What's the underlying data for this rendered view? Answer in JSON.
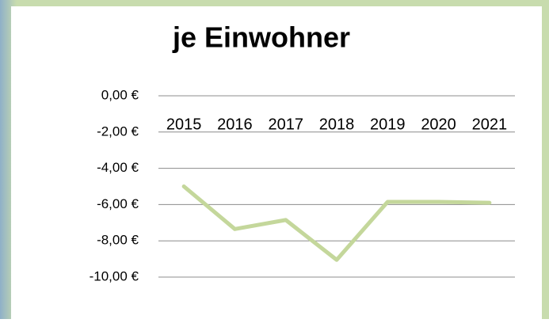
{
  "chart_data": {
    "type": "line",
    "title": "je Einwohner",
    "categories": [
      "2015",
      "2016",
      "2017",
      "2018",
      "2019",
      "2020",
      "2021"
    ],
    "series": [
      {
        "name": "je Einwohner",
        "color": "#c4d79b",
        "values": [
          -5.0,
          -7.35,
          -6.85,
          -9.05,
          -5.85,
          -5.85,
          -5.9
        ]
      }
    ],
    "ylim": [
      -10,
      0
    ],
    "yticks": [
      {
        "value": 0,
        "label": "0,00 €"
      },
      {
        "value": -2,
        "label": "-2,00 €"
      },
      {
        "value": -4,
        "label": "-4,00 €"
      },
      {
        "value": -6,
        "label": "-6,00 €"
      },
      {
        "value": -8,
        "label": "-8,00 €"
      },
      {
        "value": -10,
        "label": "-10,00 €"
      }
    ],
    "grid": true
  }
}
